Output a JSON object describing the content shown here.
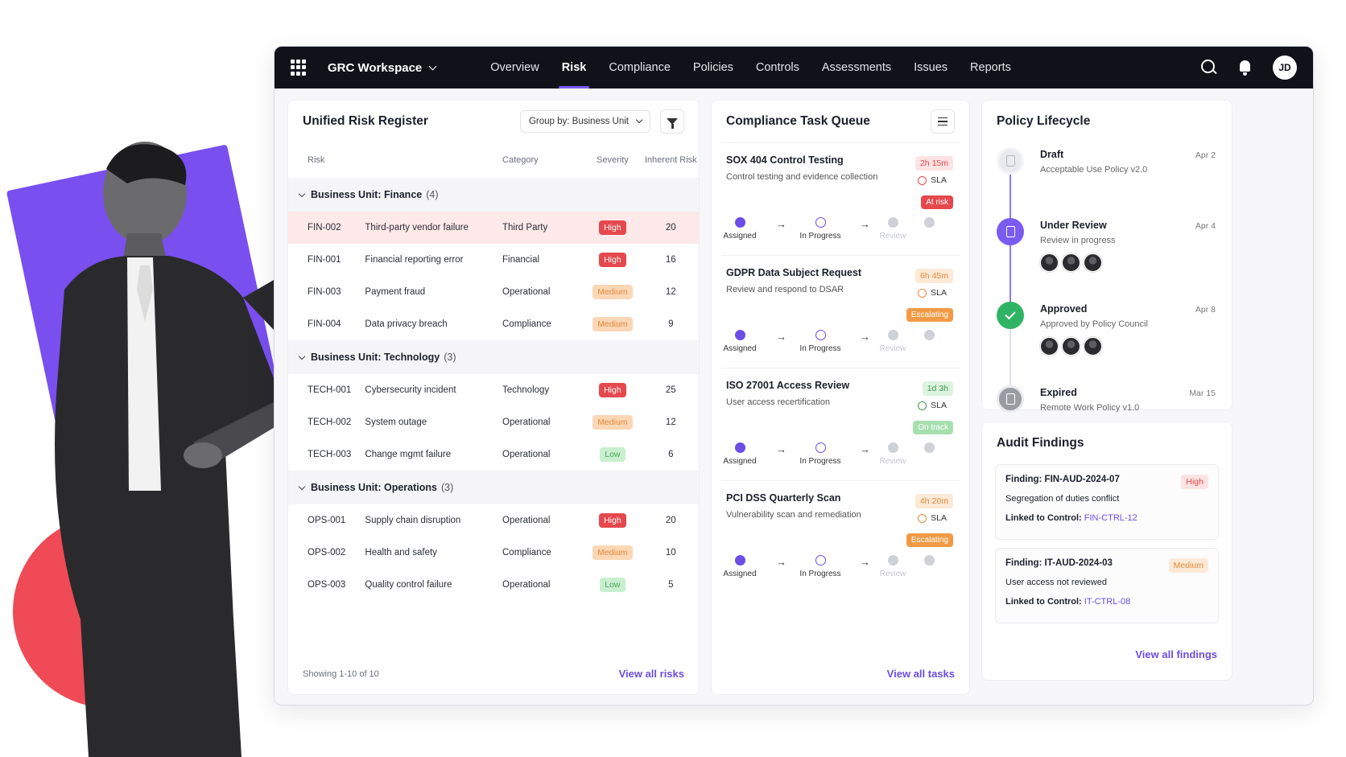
{
  "topbar": {
    "workspace": "GRC Workspace",
    "tabs": [
      "Overview",
      "Risk",
      "Compliance",
      "Policies",
      "Controls",
      "Assessments",
      "Issues",
      "Reports"
    ],
    "active_tab": "Risk",
    "avatar_initials": "JD"
  },
  "risk": {
    "title": "Unified Risk Register",
    "group_by": "Group by: Business Unit",
    "columns": [
      "Risk",
      "Category",
      "Severity",
      "Inherent Risk"
    ],
    "groups": [
      {
        "name": "Business Unit: Finance",
        "count": "(4)",
        "rows": [
          {
            "id": "FIN-002",
            "name": "Third-party vendor failure",
            "category": "Third Party",
            "severity": "High",
            "score": "20"
          },
          {
            "id": "FIN-001",
            "name": "Financial reporting error",
            "category": "Financial",
            "severity": "High",
            "score": "16"
          },
          {
            "id": "FIN-003",
            "name": "Payment fraud",
            "category": "Operational",
            "severity": "Medium",
            "score": "12"
          },
          {
            "id": "FIN-004",
            "name": "Data privacy breach",
            "category": "Compliance",
            "severity": "Medium",
            "score": "9"
          }
        ]
      },
      {
        "name": "Business Unit: Technology",
        "count": "(3)",
        "rows": [
          {
            "id": "TECH-001",
            "name": "Cybersecurity incident",
            "category": "Technology",
            "severity": "High",
            "score": "25"
          },
          {
            "id": "TECH-002",
            "name": "System outage",
            "category": "Operational",
            "severity": "Medium",
            "score": "12"
          },
          {
            "id": "TECH-003",
            "name": "Change mgmt failure",
            "category": "Operational",
            "severity": "Low",
            "score": "6"
          }
        ]
      },
      {
        "name": "Business Unit: Operations",
        "count": "(3)",
        "rows": [
          {
            "id": "OPS-001",
            "name": "Supply chain disruption",
            "category": "Operational",
            "severity": "High",
            "score": "20"
          },
          {
            "id": "OPS-002",
            "name": "Health and safety",
            "category": "Compliance",
            "severity": "Medium",
            "score": "10"
          },
          {
            "id": "OPS-003",
            "name": "Quality control failure",
            "category": "Operational",
            "severity": "Low",
            "score": "5"
          }
        ]
      }
    ],
    "footer": "Showing 1-10 of 10",
    "view_all": "View all risks"
  },
  "tasks": {
    "title": "Compliance Task Queue",
    "items": [
      {
        "title": "SOX 404 Control Testing",
        "sub": "Control testing and evidence collection",
        "timer": "2h 15m",
        "timer_tone": "red",
        "sla": "SLA",
        "status": "At risk",
        "status_tone": "red"
      },
      {
        "title": "GDPR Data Subject Request",
        "sub": "Review and respond to DSAR",
        "timer": "6h 45m",
        "timer_tone": "orange",
        "sla": "SLA",
        "status": "Escalating",
        "status_tone": "orange"
      },
      {
        "title": "ISO 27001 Access Review",
        "sub": "User access recertification",
        "timer": "1d 3h",
        "timer_tone": "green",
        "sla": "SLA",
        "status": "On track",
        "status_tone": "green"
      },
      {
        "title": "PCI DSS Quarterly Scan",
        "sub": "Vulnerability scan and remediation",
        "timer": "4h 20m",
        "timer_tone": "orange",
        "sla": "SLA",
        "status": "Escalating",
        "status_tone": "orange"
      }
    ],
    "steps": [
      "Assigned",
      "In Progress",
      "Review"
    ],
    "view_all": "View all tasks"
  },
  "policy": {
    "title": "Policy Lifecycle",
    "stages": [
      {
        "name": "Draft",
        "desc": "Acceptable Use Policy v2.0",
        "date": "Apr 2"
      },
      {
        "name": "Under Review",
        "desc": "Review in progress",
        "date": "Apr 4"
      },
      {
        "name": "Approved",
        "desc": "Approved by Policy Council",
        "date": "Apr 8"
      },
      {
        "name": "Expired",
        "desc": "Remote Work Policy v1.0",
        "date": "Mar 15"
      }
    ]
  },
  "audit": {
    "title": "Audit Findings",
    "findings": [
      {
        "id": "Finding: FIN-AUD-2024-07",
        "severity": "High",
        "title": "Segregation of duties conflict",
        "link_label": "Linked to Control:",
        "control": "FIN-CTRL-12"
      },
      {
        "id": "Finding: IT-AUD-2024-03",
        "severity": "Medium",
        "title": "User access not reviewed",
        "link_label": "Linked to Control:",
        "control": "IT-CTRL-08"
      }
    ],
    "view_all": "View all findings"
  },
  "colors": {
    "accent": "#6c4de6",
    "high": "#e5484d",
    "medium": "#e38a3b",
    "low": "#4aa85c",
    "topbar": "#111219"
  }
}
